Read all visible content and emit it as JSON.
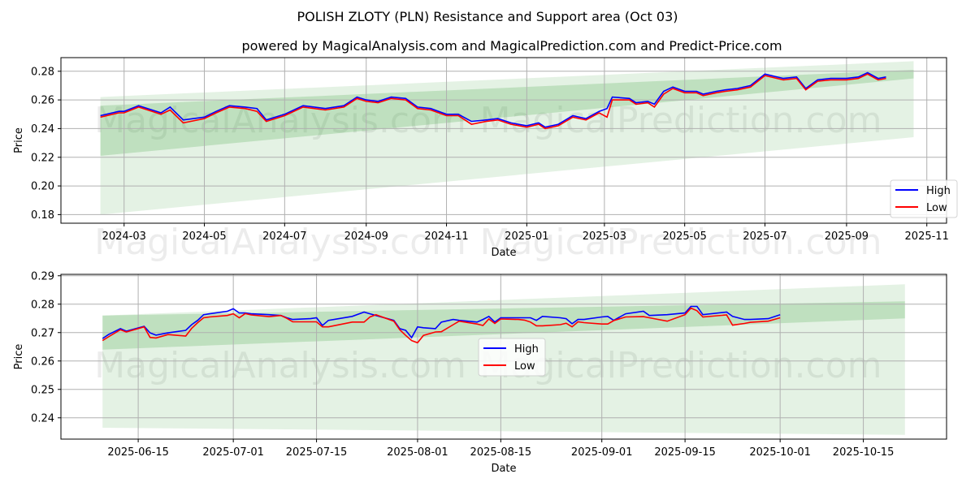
{
  "title": "POLISH ZLOTY (PLN) Resistance and Support area (Oct 03)",
  "subtitle": "powered by MagicalAnalysis.com and MagicalPrediction.com and Predict-Price.com",
  "watermarks": [
    "MagicalAnalysis.com",
    "MagicalPrediction.com"
  ],
  "colors": {
    "high": "#0000ff",
    "low": "#ff0000",
    "band": "#2e9a2e"
  },
  "chart_data": [
    {
      "type": "line",
      "title": "",
      "xlabel": "Date",
      "ylabel": "Price",
      "ylim": [
        0.174,
        0.2895
      ],
      "xlim": [
        "2024-01-13",
        "2025-11-16"
      ],
      "yticks": [
        0.18,
        0.2,
        0.22,
        0.24,
        0.26,
        0.28
      ],
      "xticks": [
        "2024-03",
        "2024-05",
        "2024-07",
        "2024-09",
        "2024-11",
        "2025-01",
        "2025-03",
        "2025-05",
        "2025-07",
        "2025-09",
        "2025-11"
      ],
      "legend": {
        "position": "lower-right",
        "entries": [
          "High",
          "Low"
        ]
      },
      "grid": true,
      "bands": [
        {
          "x": [
            "2024-02-12",
            "2025-10-22"
          ],
          "upper": [
            0.262,
            0.287
          ],
          "lower": [
            0.18,
            0.234
          ]
        },
        {
          "x": [
            "2024-02-12",
            "2025-10-22"
          ],
          "upper": [
            0.256,
            0.281
          ],
          "lower": [
            0.221,
            0.275
          ]
        }
      ],
      "x": [
        "2024-02-12",
        "2024-02-26",
        "2024-03-01",
        "2024-03-12",
        "2024-03-29",
        "2024-04-05",
        "2024-04-15",
        "2024-05-01",
        "2024-05-10",
        "2024-05-20",
        "2024-06-01",
        "2024-06-10",
        "2024-06-17",
        "2024-07-01",
        "2024-07-15",
        "2024-08-01",
        "2024-08-15",
        "2024-08-25",
        "2024-09-01",
        "2024-09-10",
        "2024-09-20",
        "2024-10-01",
        "2024-10-10",
        "2024-10-20",
        "2024-11-01",
        "2024-11-10",
        "2024-11-20",
        "2024-12-01",
        "2024-12-10",
        "2024-12-20",
        "2025-01-01",
        "2025-01-10",
        "2025-01-15",
        "2025-01-25",
        "2025-02-05",
        "2025-02-15",
        "2025-02-25",
        "2025-03-03",
        "2025-03-07",
        "2025-03-20",
        "2025-03-25",
        "2025-04-03",
        "2025-04-08",
        "2025-04-15",
        "2025-04-22",
        "2025-05-01",
        "2025-05-10",
        "2025-05-15",
        "2025-05-25",
        "2025-06-01",
        "2025-06-10",
        "2025-06-20",
        "2025-07-01",
        "2025-07-15",
        "2025-07-25",
        "2025-08-01",
        "2025-08-10",
        "2025-08-20",
        "2025-09-01",
        "2025-09-10",
        "2025-09-17",
        "2025-09-25",
        "2025-10-01"
      ],
      "series": [
        {
          "name": "High",
          "values": [
            0.249,
            0.252,
            0.252,
            0.256,
            0.251,
            0.255,
            0.246,
            0.248,
            0.252,
            0.256,
            0.255,
            0.254,
            0.246,
            0.25,
            0.256,
            0.254,
            0.256,
            0.262,
            0.26,
            0.259,
            0.262,
            0.261,
            0.255,
            0.254,
            0.25,
            0.25,
            0.245,
            0.246,
            0.247,
            0.244,
            0.242,
            0.244,
            0.241,
            0.243,
            0.249,
            0.247,
            0.252,
            0.254,
            0.262,
            0.261,
            0.258,
            0.259,
            0.257,
            0.266,
            0.269,
            0.266,
            0.266,
            0.264,
            0.266,
            0.267,
            0.268,
            0.27,
            0.278,
            0.275,
            0.276,
            0.268,
            0.274,
            0.275,
            0.275,
            0.276,
            0.279,
            0.275,
            0.276
          ]
        },
        {
          "name": "Low",
          "values": [
            0.248,
            0.251,
            0.251,
            0.255,
            0.25,
            0.253,
            0.244,
            0.247,
            0.251,
            0.255,
            0.254,
            0.252,
            0.245,
            0.249,
            0.255,
            0.253,
            0.255,
            0.261,
            0.259,
            0.258,
            0.261,
            0.26,
            0.254,
            0.253,
            0.249,
            0.249,
            0.243,
            0.245,
            0.246,
            0.243,
            0.241,
            0.243,
            0.24,
            0.242,
            0.248,
            0.246,
            0.251,
            0.248,
            0.26,
            0.26,
            0.257,
            0.258,
            0.255,
            0.264,
            0.268,
            0.265,
            0.265,
            0.263,
            0.265,
            0.266,
            0.267,
            0.269,
            0.277,
            0.274,
            0.275,
            0.267,
            0.273,
            0.274,
            0.274,
            0.275,
            0.278,
            0.274,
            0.275
          ]
        }
      ]
    },
    {
      "type": "line",
      "title": "",
      "xlabel": "Date",
      "ylabel": "Price",
      "ylim": [
        0.2325,
        0.2905
      ],
      "xlim": [
        "2025-06-02",
        "2025-10-29"
      ],
      "yticks": [
        0.24,
        0.25,
        0.26,
        0.27,
        0.28,
        0.29
      ],
      "xticks": [
        "2025-06-15",
        "2025-07-01",
        "2025-07-15",
        "2025-08-01",
        "2025-08-15",
        "2025-09-01",
        "2025-09-15",
        "2025-10-01",
        "2025-10-15"
      ],
      "legend": {
        "position": "center",
        "entries": [
          "High",
          "Low"
        ]
      },
      "grid": true,
      "bands": [
        {
          "x": [
            "2025-06-09",
            "2025-10-22"
          ],
          "upper": [
            0.276,
            0.287
          ],
          "lower": [
            0.2365,
            0.234
          ]
        },
        {
          "x": [
            "2025-06-09",
            "2025-10-22"
          ],
          "upper": [
            0.276,
            0.281
          ],
          "lower": [
            0.264,
            0.275
          ]
        }
      ],
      "x": [
        "2025-06-09",
        "2025-06-10",
        "2025-06-12",
        "2025-06-13",
        "2025-06-16",
        "2025-06-17",
        "2025-06-18",
        "2025-06-20",
        "2025-06-23",
        "2025-06-24",
        "2025-06-25",
        "2025-06-26",
        "2025-06-27",
        "2025-06-30",
        "2025-07-01",
        "2025-07-02",
        "2025-07-03",
        "2025-07-04",
        "2025-07-07",
        "2025-07-09",
        "2025-07-10",
        "2025-07-11",
        "2025-07-14",
        "2025-07-15",
        "2025-07-16",
        "2025-07-17",
        "2025-07-21",
        "2025-07-23",
        "2025-07-24",
        "2025-07-25",
        "2025-07-28",
        "2025-07-29",
        "2025-07-30",
        "2025-07-31",
        "2025-08-01",
        "2025-08-02",
        "2025-08-04",
        "2025-08-05",
        "2025-08-07",
        "2025-08-08",
        "2025-08-11",
        "2025-08-12",
        "2025-08-13",
        "2025-08-14",
        "2025-08-15",
        "2025-08-18",
        "2025-08-19",
        "2025-08-20",
        "2025-08-21",
        "2025-08-22",
        "2025-08-25",
        "2025-08-26",
        "2025-08-27",
        "2025-08-28",
        "2025-08-29",
        "2025-09-01",
        "2025-09-02",
        "2025-09-03",
        "2025-09-05",
        "2025-09-08",
        "2025-09-09",
        "2025-09-12",
        "2025-09-15",
        "2025-09-16",
        "2025-09-17",
        "2025-09-18",
        "2025-09-22",
        "2025-09-23",
        "2025-09-25",
        "2025-09-26",
        "2025-09-29",
        "2025-10-01"
      ],
      "series": [
        {
          "name": "High",
          "values": [
            0.2679,
            0.2693,
            0.2714,
            0.2705,
            0.2722,
            0.2699,
            0.2691,
            0.2699,
            0.2708,
            0.2728,
            0.2743,
            0.2763,
            0.2766,
            0.2775,
            0.2784,
            0.2769,
            0.2769,
            0.2766,
            0.2763,
            0.276,
            0.2752,
            0.2746,
            0.2749,
            0.2752,
            0.2725,
            0.2743,
            0.2757,
            0.2772,
            0.2766,
            0.276,
            0.2743,
            0.2714,
            0.2708,
            0.2682,
            0.272,
            0.2717,
            0.2714,
            0.2737,
            0.2746,
            0.2743,
            0.2737,
            0.2746,
            0.2757,
            0.2737,
            0.2752,
            0.2752,
            0.2752,
            0.2752,
            0.2743,
            0.2757,
            0.2752,
            0.2749,
            0.2731,
            0.2746,
            0.2746,
            0.2755,
            0.2757,
            0.2743,
            0.2766,
            0.2775,
            0.276,
            0.2763,
            0.2769,
            0.2792,
            0.2792,
            0.2763,
            0.2772,
            0.2757,
            0.2746,
            0.2746,
            0.2749,
            0.2763
          ]
        },
        {
          "name": "Low",
          "values": [
            0.2672,
            0.2685,
            0.271,
            0.2702,
            0.272,
            0.2683,
            0.2681,
            0.2693,
            0.2688,
            0.2715,
            0.2735,
            0.2752,
            0.2755,
            0.276,
            0.2766,
            0.2752,
            0.2767,
            0.2762,
            0.2756,
            0.276,
            0.275,
            0.2738,
            0.2738,
            0.2738,
            0.272,
            0.272,
            0.2737,
            0.2737,
            0.2755,
            0.2763,
            0.274,
            0.271,
            0.269,
            0.2672,
            0.2664,
            0.269,
            0.2702,
            0.2703,
            0.2728,
            0.274,
            0.273,
            0.2725,
            0.2748,
            0.2732,
            0.2748,
            0.2746,
            0.2744,
            0.2737,
            0.2724,
            0.2724,
            0.2728,
            0.2733,
            0.272,
            0.2738,
            0.2735,
            0.273,
            0.273,
            0.2742,
            0.2755,
            0.2756,
            0.2752,
            0.274,
            0.2763,
            0.2786,
            0.2777,
            0.2755,
            0.2762,
            0.2726,
            0.2732,
            0.2736,
            0.274,
            0.2752
          ]
        }
      ]
    }
  ]
}
